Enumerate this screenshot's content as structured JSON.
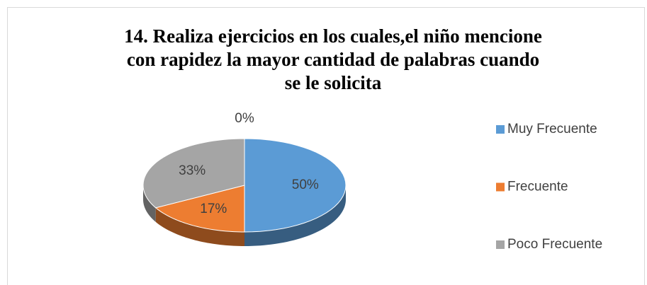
{
  "chart_data": {
    "type": "pie3d",
    "title": [
      "14. Realiza ejercicios en los cuales,el niño mencione",
      "con rapidez la mayor cantidad de palabras cuando",
      "se le solicita"
    ],
    "categories": [
      "Muy Frecuente",
      "Frecuente",
      "Poco Frecuente",
      null
    ],
    "values": [
      50,
      17,
      33,
      0
    ],
    "value_labels": [
      "50%",
      "17%",
      "33%",
      "0%"
    ],
    "colors": [
      "#5b9bd5",
      "#ed7d31",
      "#a5a5a5",
      "#ffc000"
    ],
    "legend": "right"
  }
}
